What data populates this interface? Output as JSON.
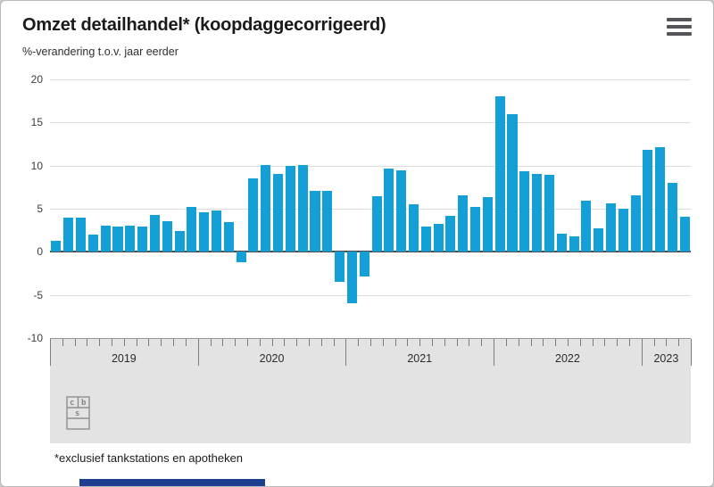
{
  "page": {
    "title": "Omzet detailhandel* (koopdaggecorrigeerd)",
    "subtitle": "%-verandering t.o.v. jaar eerder",
    "footnote": "*exclusief tankstations en apotheken"
  },
  "icons": {
    "menu": "hamburger-icon",
    "logo": "cbs-logo"
  },
  "colors": {
    "bar": "#149fd6",
    "grid": "#dcdcdc",
    "zero_line": "#4f4f4f",
    "axis_band": "#e3e3e3",
    "accent_strip": "#1d3f8f"
  },
  "chart_data": {
    "type": "bar",
    "title": "Omzet detailhandel* (koopdaggecorrigeerd)",
    "subtitle": "%-verandering t.o.v. jaar eerder",
    "ylabel": "%-verandering t.o.v. jaar eerder",
    "unit": "%",
    "ylim": [
      -10,
      20
    ],
    "yticks": [
      20,
      15,
      10,
      5,
      0,
      -5,
      -10
    ],
    "grid": true,
    "legend": "none",
    "groups": [
      {
        "year": "2019",
        "values": [
          1.3,
          4.0,
          4.0,
          2.0,
          3.0,
          2.9,
          3.0,
          2.9,
          4.3,
          3.6,
          2.4,
          5.2
        ]
      },
      {
        "year": "2020",
        "values": [
          4.6,
          4.8,
          3.4,
          -1.2,
          8.5,
          10.1,
          9.0,
          10.0,
          10.1,
          7.1,
          7.1,
          -3.5
        ]
      },
      {
        "year": "2021",
        "values": [
          -6.0,
          -2.9,
          6.5,
          9.7,
          9.4,
          5.5,
          2.9,
          3.2,
          4.2,
          6.6,
          5.2,
          6.3
        ]
      },
      {
        "year": "2022",
        "values": [
          18.0,
          16.0,
          9.3,
          9.0,
          8.9,
          2.1,
          1.8,
          5.9,
          2.7,
          5.6,
          5.0,
          6.6
        ]
      },
      {
        "year": "2023",
        "values": [
          11.8,
          12.1,
          8.0,
          4.1
        ]
      }
    ]
  }
}
